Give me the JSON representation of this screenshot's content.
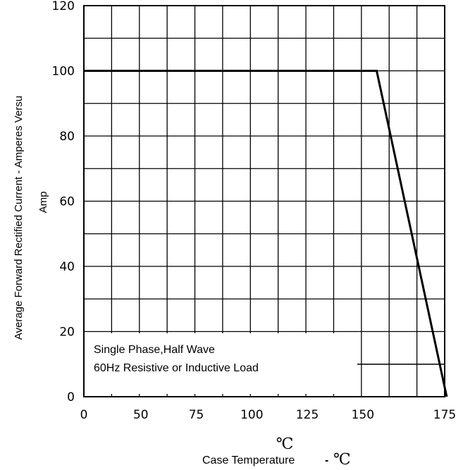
{
  "chart_data": {
    "type": "line",
    "title": "",
    "xlabel": "Case Temperature",
    "xlabel_sep": "-",
    "xlabel_unit": "℃",
    "x_unit_above": "℃",
    "ylabel": "Average Forward Rectified Current - Amperes Versu",
    "ylabel2": "Amp",
    "xlim": [
      0,
      175
    ],
    "ylim": [
      0,
      120
    ],
    "x_ticks": [
      "0",
      "50",
      "75",
      "100",
      "125",
      "150",
      "175"
    ],
    "y_ticks": [
      "0",
      "20",
      "40",
      "60",
      "80",
      "100",
      "120"
    ],
    "grid": true,
    "series": [
      {
        "x": [
          0,
          142,
          176
        ],
        "y": [
          100,
          100,
          0
        ]
      }
    ],
    "annotations": [
      "Single Phase,Half Wave",
      "60Hz Resistive or Inductive Load"
    ],
    "colors": {
      "line": "#000000",
      "grid": "#000000",
      "background": "#ffffff"
    }
  }
}
